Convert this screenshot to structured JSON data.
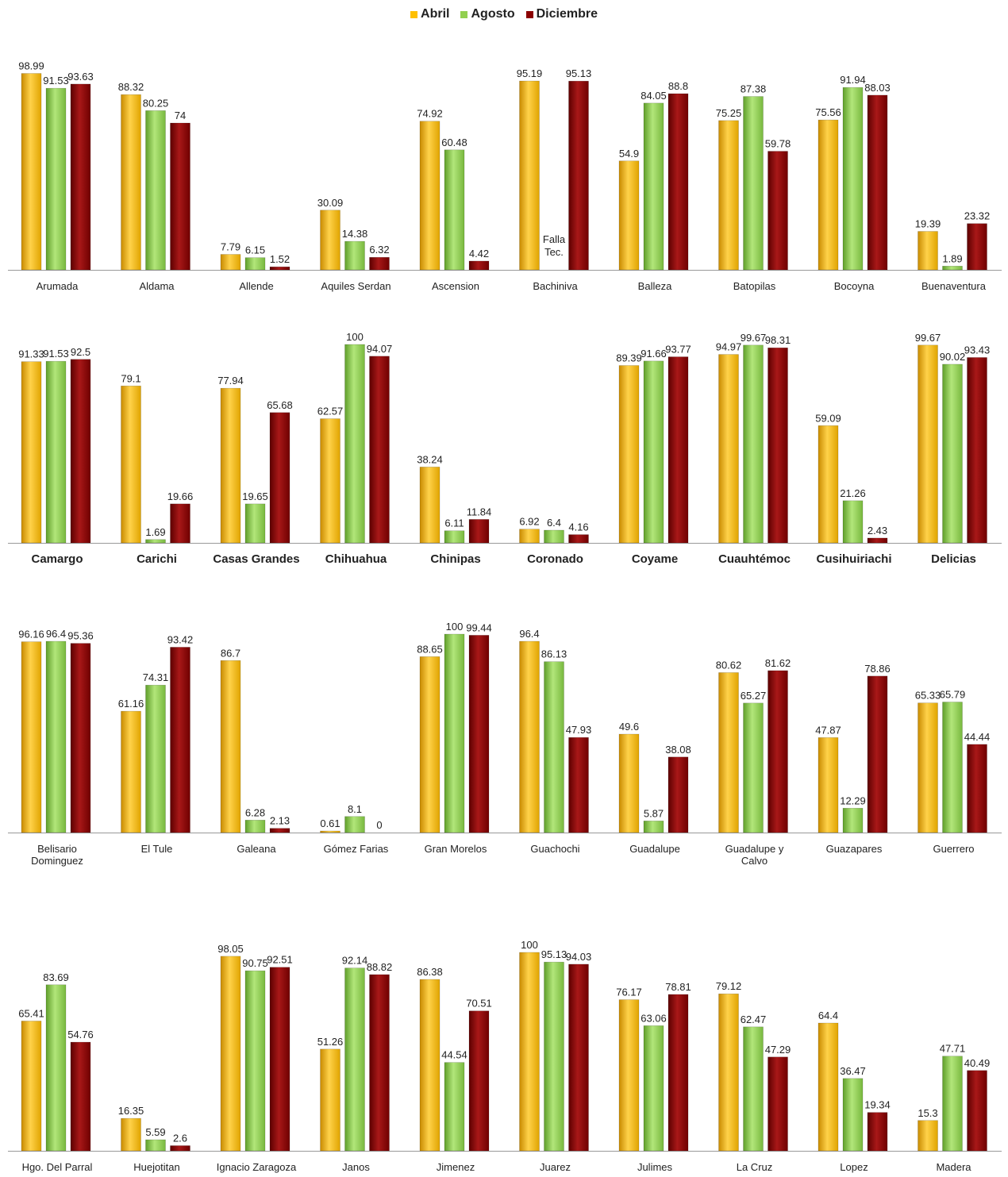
{
  "legend": {
    "items": [
      {
        "label": "Abril",
        "color": "#FFC000"
      },
      {
        "label": "Agosto",
        "color": "#92D050"
      },
      {
        "label": "Diciembre",
        "color": "#8B0000"
      }
    ]
  },
  "chart_data": [
    {
      "type": "bar",
      "series_names": [
        "Abril",
        "Agosto",
        "Diciembre"
      ],
      "ylim": [
        0,
        100
      ],
      "categories": [
        "Arumada",
        "Aldama",
        "Allende",
        "Aquiles Serdan",
        "Ascension",
        "Bachiniva",
        "Balleza",
        "Batopilas",
        "Bocoyna",
        "Buenaventura"
      ],
      "values": [
        [
          98.99,
          91.53,
          93.63
        ],
        [
          88.32,
          80.25,
          74
        ],
        [
          7.79,
          6.15,
          1.52
        ],
        [
          30.09,
          14.38,
          6.32
        ],
        [
          74.92,
          60.48,
          4.42
        ],
        [
          95.19,
          null,
          95.13
        ],
        [
          54.9,
          84.05,
          88.8
        ],
        [
          75.25,
          87.38,
          59.78
        ],
        [
          75.56,
          91.94,
          88.03
        ],
        [
          19.39,
          1.89,
          23.32
        ]
      ],
      "annotations": [
        {
          "category": "Bachiniva",
          "text": "Falla Tec."
        }
      ]
    },
    {
      "type": "bar",
      "series_names": [
        "Abril",
        "Agosto",
        "Diciembre"
      ],
      "ylim": [
        0,
        100
      ],
      "categories": [
        "Camargo",
        "Carichi",
        "Casas Grandes",
        "Chihuahua",
        "Chinipas",
        "Coronado",
        "Coyame",
        "Cuauhtémoc",
        "Cusihuiriachi",
        "Delicias"
      ],
      "values": [
        [
          91.33,
          91.53,
          92.5
        ],
        [
          79.1,
          1.69,
          19.66
        ],
        [
          77.94,
          19.65,
          65.68
        ],
        [
          62.57,
          100,
          94.07
        ],
        [
          38.24,
          6.11,
          11.84
        ],
        [
          6.92,
          6.4,
          4.16
        ],
        [
          89.39,
          91.66,
          93.77
        ],
        [
          94.97,
          99.67,
          98.31
        ],
        [
          59.09,
          21.26,
          2.43
        ],
        [
          99.67,
          90.02,
          93.43
        ]
      ]
    },
    {
      "type": "bar",
      "series_names": [
        "Abril",
        "Agosto",
        "Diciembre"
      ],
      "ylim": [
        0,
        100
      ],
      "categories": [
        "Belisario Dominguez",
        "El Tule",
        "Galeana",
        "Gómez Farias",
        "Gran Morelos",
        "Guachochi",
        "Guadalupe",
        "Guadalupe y Calvo",
        "Guazapares",
        "Guerrero"
      ],
      "values": [
        [
          96.16,
          96.4,
          95.36
        ],
        [
          61.16,
          74.31,
          93.42
        ],
        [
          86.7,
          6.28,
          2.13
        ],
        [
          0.61,
          8.1,
          0
        ],
        [
          88.65,
          100,
          99.44
        ],
        [
          96.4,
          86.13,
          47.93
        ],
        [
          49.6,
          5.87,
          38.08
        ],
        [
          80.62,
          65.27,
          81.62
        ],
        [
          47.87,
          12.29,
          78.86
        ],
        [
          65.33,
          65.79,
          44.44
        ]
      ]
    },
    {
      "type": "bar",
      "series_names": [
        "Abril",
        "Agosto",
        "Diciembre"
      ],
      "ylim": [
        0,
        100
      ],
      "categories": [
        "Hgo. Del Parral",
        "Huejotitan",
        "Ignacio Zaragoza",
        "Janos",
        "Jimenez",
        "Juarez",
        "Julimes",
        "La Cruz",
        "Lopez",
        "Madera"
      ],
      "values": [
        [
          65.41,
          83.69,
          54.76
        ],
        [
          16.35,
          5.59,
          2.6
        ],
        [
          98.05,
          90.75,
          92.51
        ],
        [
          51.26,
          92.14,
          88.82
        ],
        [
          86.38,
          44.54,
          70.51
        ],
        [
          100,
          95.13,
          94.03
        ],
        [
          76.17,
          63.06,
          78.81
        ],
        [
          79.12,
          62.47,
          47.29
        ],
        [
          64.4,
          36.47,
          19.34
        ],
        [
          15.3,
          47.71,
          40.49
        ]
      ]
    }
  ]
}
